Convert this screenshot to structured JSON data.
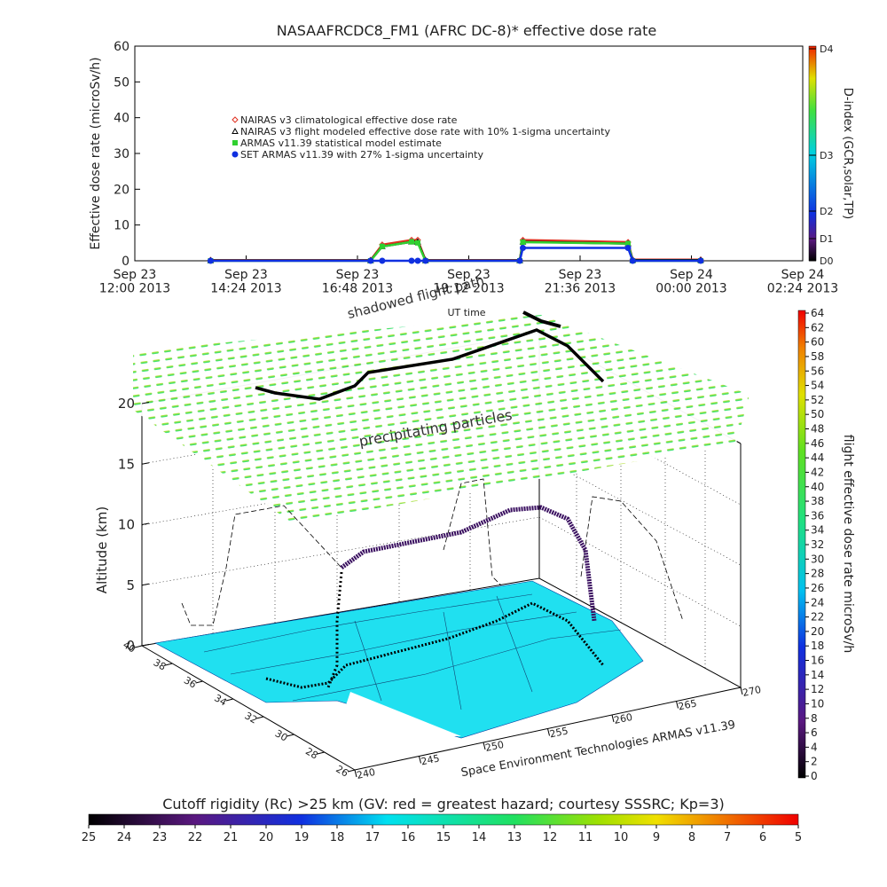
{
  "chart_data": {
    "type": "line",
    "title": "NASAAFRCDC8_FM1 (AFRC DC-8)* effective dose rate",
    "x_label": "UT time",
    "y_label": "Effective dose rate (microSv/h)",
    "x": [
      "2013-09-23T13:38",
      "2013-09-23T17:05",
      "2013-09-23T17:20",
      "2013-09-23T17:58",
      "2013-09-23T18:06",
      "2013-09-23T18:16",
      "2013-09-23T20:18",
      "2013-09-23T20:22",
      "2013-09-23T22:38",
      "2013-09-23T22:44",
      "2013-09-24T00:12"
    ],
    "series": [
      {
        "name": "NAIRAS v3 climatological effective dose rate",
        "color": "#e03020",
        "marker": "diamond",
        "values": [
          0.2,
          0.2,
          4.5,
          5.8,
          5.8,
          0.2,
          0.2,
          5.8,
          5.2,
          0.3,
          0.3
        ]
      },
      {
        "name": "NAIRAS v3 flight modeled effective dose rate with 10% 1-sigma uncertainty",
        "color": "#000000",
        "marker": "triangle",
        "values": [
          0.1,
          0.1,
          4,
          5.3,
          5.3,
          0.1,
          0.1,
          5.3,
          4.8,
          0.2,
          0.2
        ]
      },
      {
        "name": "ARMAS v11.39 statistical model estimate",
        "color": "#30d030",
        "marker": "square",
        "values": [
          0,
          0,
          4,
          5.3,
          5,
          0,
          0,
          5.2,
          4.8,
          0,
          0
        ]
      },
      {
        "name": "SET ARMAS v11.39 with 27% 1-sigma uncertainty",
        "color": "#1030e0",
        "marker": "circle",
        "values": [
          0,
          0,
          0,
          0,
          0,
          0,
          0,
          3.6,
          3.6,
          0,
          0
        ]
      }
    ],
    "xlim": [
      "2013-09-23T12:00",
      "2013-09-24T02:24"
    ],
    "xticks": [
      {
        "value": "2013-09-23T12:00",
        "label": "Sep 23\n12:00 2013"
      },
      {
        "value": "2013-09-23T14:24",
        "label": "Sep 23\n14:24 2013"
      },
      {
        "value": "2013-09-23T16:48",
        "label": "Sep 23\n16:48 2013"
      },
      {
        "value": "2013-09-23T19:12",
        "label": "Sep 23\n19:12 2013"
      },
      {
        "value": "2013-09-23T21:36",
        "label": "Sep 23\n21:36 2013"
      },
      {
        "value": "2013-09-24T00:00",
        "label": "Sep 24\n00:00 2013"
      },
      {
        "value": "2013-09-24T02:24",
        "label": "Sep 24\n02:24 2013"
      }
    ],
    "ylim": [
      0,
      60
    ],
    "yticks": [
      0,
      10,
      20,
      30,
      40,
      50,
      60
    ]
  },
  "d_index_bar": {
    "label": "D-index (GCR,solar,TP)",
    "ticks": [
      "D0",
      "D1",
      "D2",
      "D3",
      "D4"
    ]
  },
  "scene": {
    "z_label": "Altitude (km)",
    "zlim": [
      0,
      20
    ],
    "zticks": [
      0,
      5,
      10,
      15,
      20
    ],
    "lat_lim": [
      40,
      26
    ],
    "lat_ticks": [
      40,
      38,
      36,
      34,
      32,
      30,
      28,
      26
    ],
    "lon_lim": [
      240,
      270
    ],
    "lon_ticks": [
      240,
      245,
      250,
      255,
      260,
      265,
      270
    ],
    "layer_label": "precipitating particles",
    "shadow_label": "shadowed flight path",
    "credit": "Space Environment Technologies ARMAS v11.39"
  },
  "dose_bar": {
    "label": "flight effective dose rate microSv/h",
    "lim": [
      0,
      64
    ],
    "ticks": [
      0,
      2,
      4,
      6,
      8,
      10,
      12,
      14,
      16,
      18,
      20,
      22,
      24,
      26,
      28,
      30,
      32,
      34,
      36,
      38,
      40,
      42,
      44,
      46,
      48,
      50,
      52,
      54,
      56,
      58,
      60,
      62,
      64
    ]
  },
  "rigidity_bar": {
    "label": "Cutoff rigidity (Rc) >25 km (GV: red = greatest hazard; courtesy SSSRC; Kp=3)",
    "lim": [
      25,
      5
    ],
    "ticks": [
      25,
      24,
      23,
      22,
      21,
      20,
      19,
      18,
      17,
      16,
      15,
      14,
      13,
      12,
      11,
      10,
      9,
      8,
      7,
      6,
      5
    ]
  }
}
